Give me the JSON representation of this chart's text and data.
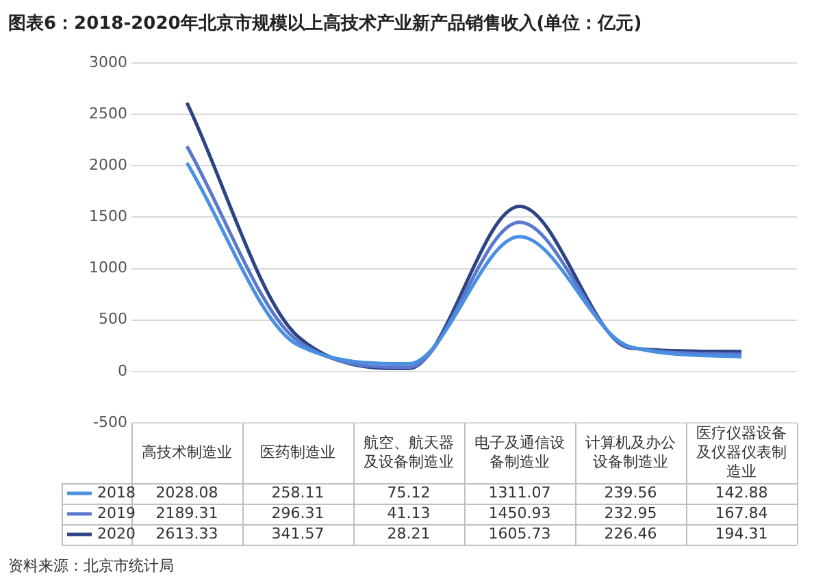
{
  "chart_data": {
    "type": "line",
    "title": "图表6：2018-2020年北京市规模以上高技术产业新产品销售收入(单位：亿元)",
    "categories": [
      "高技术制造业",
      "医药制造业",
      "航空、航天器及设备制造业",
      "电子及通信设备制造业",
      "计算机及办公设备制造业",
      "医疗仪器设备及仪器仪表制造业"
    ],
    "series": [
      {
        "name": "2018",
        "color": "#4a90e2",
        "values": [
          2028.08,
          258.11,
          75.12,
          1311.07,
          239.56,
          142.88
        ]
      },
      {
        "name": "2019",
        "color": "#5b78cf",
        "values": [
          2189.31,
          296.31,
          41.13,
          1450.93,
          232.95,
          167.84
        ]
      },
      {
        "name": "2020",
        "color": "#2c4484",
        "values": [
          2613.33,
          341.57,
          28.21,
          1605.73,
          226.46,
          194.31
        ]
      }
    ],
    "ylim": [
      -500,
      3000
    ],
    "yticks": [
      -500,
      0,
      500,
      1000,
      1500,
      2000,
      2500,
      3000
    ],
    "grid": "y",
    "legend": "bottom",
    "data_labels": true,
    "marker": "none",
    "line_style": "solid",
    "annotations": [
      "资料来源：北京市统计局"
    ]
  }
}
